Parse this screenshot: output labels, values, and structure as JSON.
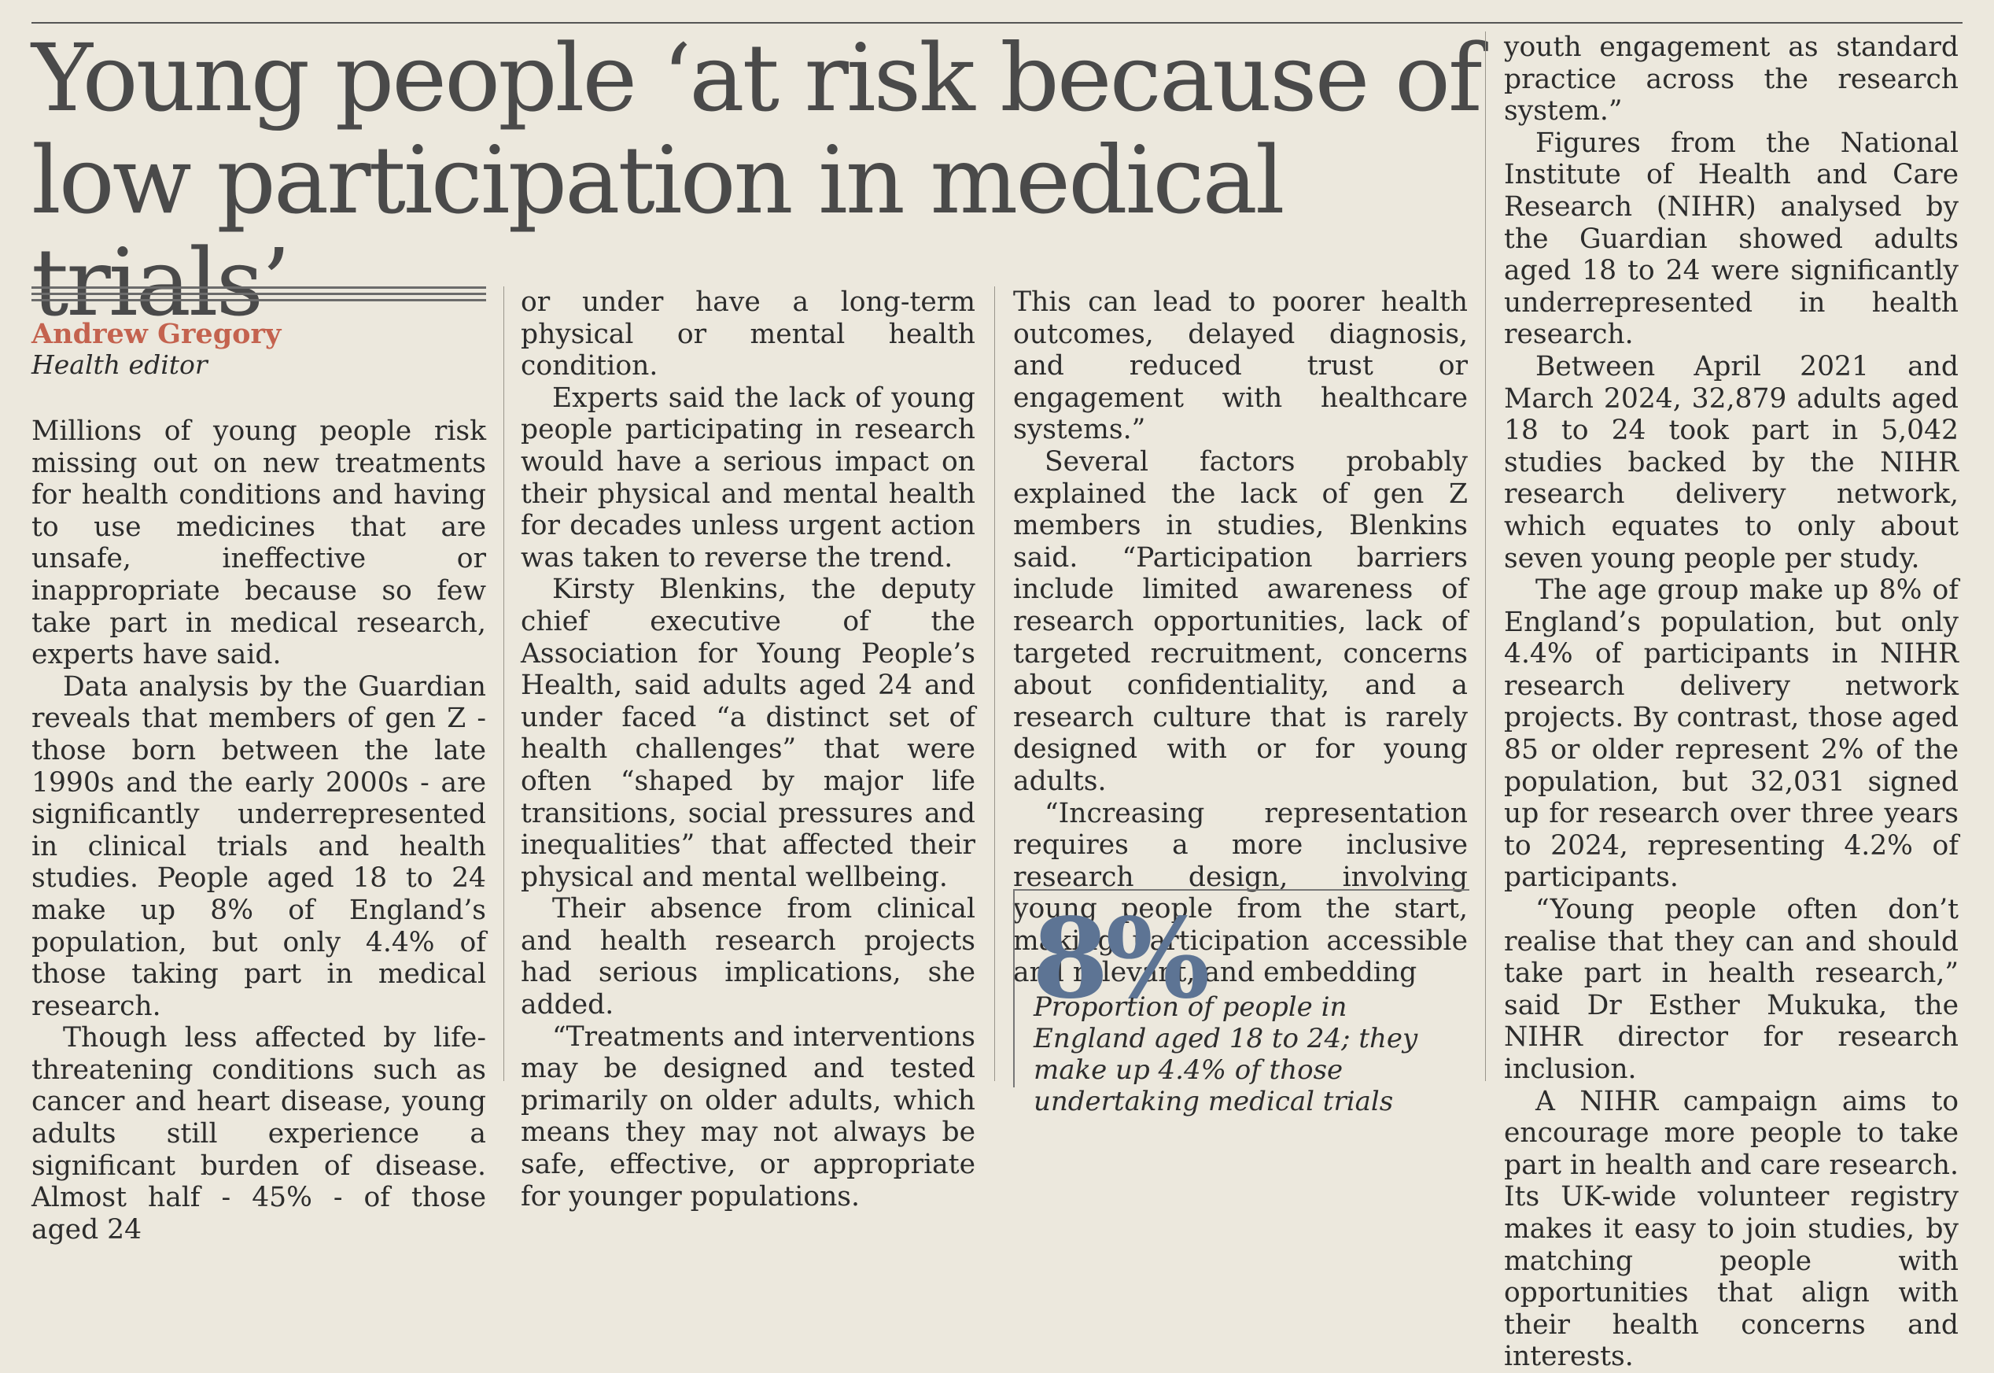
{
  "headline": {
    "line1": "Young people ‘at risk because of",
    "line2": "low participation in medical trials’"
  },
  "byline": {
    "author": "Andrew Gregory",
    "role": "Health editor"
  },
  "columns": {
    "c1": [
      "Millions of young people risk missing out on new treatments for health conditions and having to use medicines that are unsafe, ineffective or inappropriate because so few take part in medical research, experts have said.",
      "Data analysis by the Guardian reveals that members of gen Z - those born between the late 1990s and the early 2000s - are significantly underrepresented in clinical trials and health studies. People aged 18 to 24 make up 8% of England’s population, but only 4.4% of those taking part in medical research.",
      "Though less affected by life-threatening conditions such as cancer and heart disease, young adults still experience a significant burden of disease. Almost half - 45% - of those aged 24"
    ],
    "c2": [
      "or under have a long-term physical or mental health condition.",
      "Experts said the lack of young people participating in research would have a serious impact on their physical and mental health for decades unless urgent action was taken to reverse the trend.",
      "Kirsty Blenkins, the deputy chief executive of the Association for Young People’s Health, said adults aged 24 and under faced “a distinct set of health challenges” that were often “shaped by major life transitions, social pressures and inequalities” that affected their physical and mental wellbeing.",
      "Their absence from clinical and health research projects had serious implications, she added.",
      "“Treatments and interventions may be designed and tested primarily on older adults, which means they may not always be safe, effective, or appropriate for younger populations."
    ],
    "c3": [
      "This can lead to poorer health outcomes, delayed diagnosis, and reduced trust or engagement with healthcare systems.”",
      "Several factors probably explained the lack of gen Z members in studies, Blenkins said. “Participation barriers include limited awareness of research opportunities, lack of targeted recruitment, concerns about confidentiality, and a research culture that is rarely designed with or for young adults.",
      "“Increasing representation requires a more inclusive research design, involving young people from the start, making participation accessible and relevant, and embedding"
    ],
    "c4": [
      "youth engagement as standard practice across the research system.”",
      "Figures from the National Institute of Health and Care Research (NIHR) analysed by the Guardian showed adults aged 18 to 24 were significantly underrepresented in health research.",
      "Between April 2021 and March 2024, 32,879 adults aged 18 to 24 took part in 5,042 studies backed by the NIHR research delivery network, which equates to only about seven young people per study.",
      "The age group make up 8% of England’s population, but only 4.4% of participants in NIHR research delivery network projects. By contrast, those aged 85 or older represent 2% of the population, but 32,031 signed up for research over three years to 2024, representing 4.2% of participants.",
      "“Young people often don’t realise that they can and should take part in health research,” said Dr Esther Mukuka, the NIHR director for research inclusion.",
      "A NIHR campaign aims to encourage more people to take part in health and care research. Its UK-wide volunteer registry makes it easy to join studies, by matching people with opportunities that align with their health concerns and interests."
    ]
  },
  "stat": {
    "value": "8%",
    "caption": "Proportion of people in England aged 18 to 24; they make up 4.4% of those undertaking medical trials"
  }
}
